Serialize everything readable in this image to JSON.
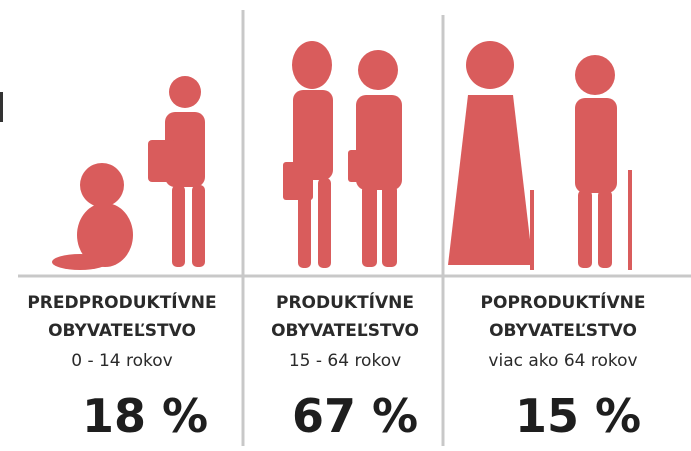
{
  "groups": [
    {
      "title": [
        "PREDPRODUKTÍVNE",
        "OBYVATEĽSTVO"
      ],
      "age": "0 - 14 rokov",
      "share": "18 %"
    },
    {
      "title": [
        "PRODUKTÍVNE",
        "OBYVATEĽSTVO"
      ],
      "age": "15 - 64 rokov",
      "share": "67 %"
    },
    {
      "title": [
        "POPRODUKTÍVNE",
        "OBYVATEĽSTVO"
      ],
      "age": "viac ako 64 rokov",
      "share": "15 %"
    }
  ]
}
